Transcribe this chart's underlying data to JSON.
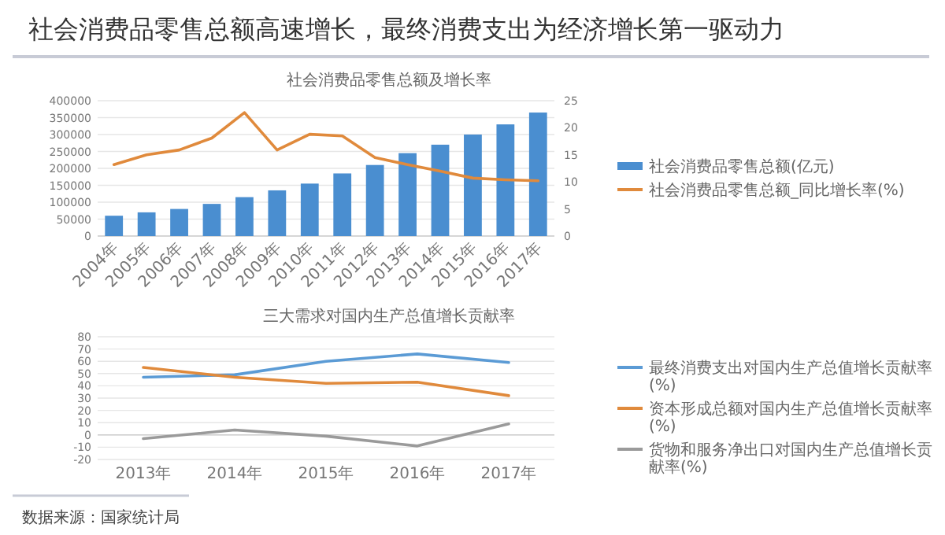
{
  "chart_data": [
    {
      "type": "bar",
      "title": "社会消费品零售总额高速增长，最终消费支出为经济增长第一驱动力",
      "subtitle": "社会消费品零售总额及增长率",
      "categories": [
        "2004年",
        "2005年",
        "2006年",
        "2007年",
        "2008年",
        "2009年",
        "2010年",
        "2011年",
        "2012年",
        "2013年",
        "2014年",
        "2015年",
        "2016年",
        "2017年"
      ],
      "series": [
        {
          "name": "社会消费品零售总额(亿元)",
          "color": "#4a8ed0",
          "values": [
            60000,
            70000,
            80000,
            95000,
            115000,
            135000,
            155000,
            185000,
            210000,
            245000,
            270000,
            300000,
            330000,
            365000
          ]
        },
        {
          "name": "社会消费品零售总额_同比增长率(%)",
          "type": "line",
          "axis": "y2",
          "color": "#e08a3c",
          "values": [
            13.2,
            15,
            15.9,
            18.1,
            22.8,
            15.9,
            18.8,
            18.5,
            14.5,
            13.2,
            12,
            10.7,
            10.4,
            10.2
          ]
        }
      ],
      "ylim": [
        0,
        400000
      ],
      "yticks": [
        0,
        50000,
        100000,
        150000,
        200000,
        250000,
        300000,
        350000,
        400000
      ],
      "y2lim": [
        0,
        25
      ],
      "y2ticks": [
        0,
        5,
        10,
        15,
        20,
        25
      ],
      "grid": "y",
      "legend": "right"
    },
    {
      "type": "line",
      "title": "三大需求对国内生产总值增长贡献率",
      "categories": [
        "2013年",
        "2014年",
        "2015年",
        "2016年",
        "2017年"
      ],
      "series": [
        {
          "name": "最终消费支出对国内生产总值增长贡献率(%)",
          "color": "#5b9bd5",
          "values": [
            47,
            49,
            60,
            66,
            59
          ]
        },
        {
          "name": "资本形成总额对国内生产总值增长贡献率(%)",
          "color": "#e08a3c",
          "values": [
            55,
            47,
            42,
            43,
            32
          ]
        },
        {
          "name": "货物和服务净出口对国内生产总值增长贡献率(%)",
          "color": "#9a9a9a",
          "values": [
            -3,
            4,
            -1,
            -9,
            9
          ]
        }
      ],
      "ylim": [
        -20,
        80
      ],
      "yticks": [
        -20,
        -10,
        0,
        10,
        20,
        30,
        40,
        50,
        60,
        70,
        80
      ],
      "grid": "y",
      "legend": "right",
      "marker": "none",
      "line_style": "solid",
      "annotations": [
        "数据来源：国家统计局"
      ]
    }
  ]
}
